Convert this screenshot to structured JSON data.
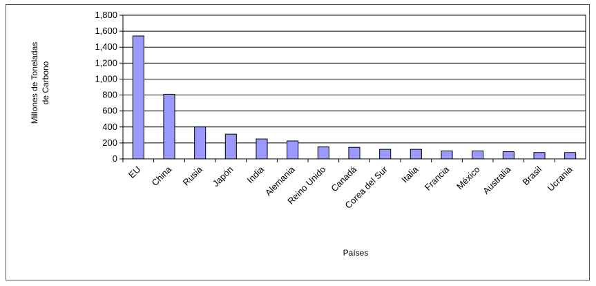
{
  "chart_data": {
    "type": "bar",
    "title": "",
    "xlabel": "Países",
    "ylabel_lines": [
      "Millones de Toneladas",
      "de Carbono"
    ],
    "categories": [
      "EU",
      "China",
      "Rusia",
      "Japón",
      "India",
      "Alemania",
      "Reino Unido",
      "Canadá",
      "Corea del Sur",
      "Italia",
      "Francia",
      "México",
      "Australia",
      "Brasil",
      "Ucrania"
    ],
    "values": [
      1540,
      810,
      400,
      310,
      250,
      225,
      150,
      145,
      120,
      120,
      100,
      100,
      90,
      80,
      80
    ],
    "ylim": [
      0,
      1800
    ],
    "yticks": [
      "0",
      "200",
      "400",
      "600",
      "800",
      "1,000",
      "1,200",
      "1,400",
      "1,600",
      "1,800"
    ],
    "grid": true,
    "legend": "none",
    "colors": {
      "bar_fill": "#9999ff",
      "bar_stroke": "#000000",
      "plot_bg": "#ffffff"
    }
  }
}
